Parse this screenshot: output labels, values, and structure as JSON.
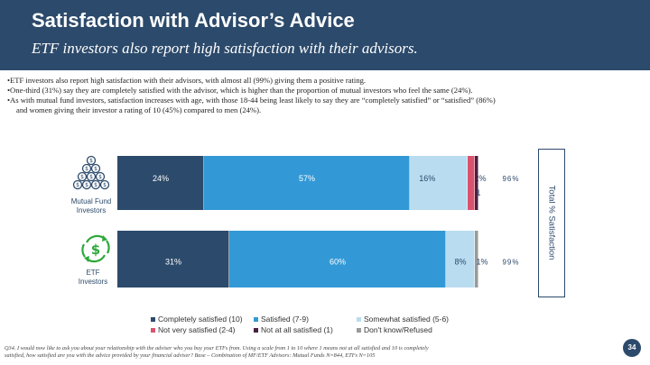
{
  "header": {
    "title": "Satisfaction with Advisor’s Advice",
    "subtitle": "ETF investors also report high satisfaction with their advisors."
  },
  "bullets": [
    "•ETF investors also report high satisfaction with their advisors, with almost all (99%) giving them a positive rating.",
    "•One-third (31%) say they are completely satisfied with the advisor, which is higher than the proportion of mutual investors who feel the same (24%).",
    "•As with mutual fund investors, satisfaction increases with age, with those 18-44 being least likely to say they are “completely satisfied” or “satisfied” (86%)",
    "  and women giving their investor a rating of 10 (45%) compared to men (24%)."
  ],
  "row_labels": {
    "mutual": [
      "Mutual Fund",
      "Investors"
    ],
    "etf": [
      "ETF",
      "Investors"
    ]
  },
  "total_axis_label": "Total % Satisfaction",
  "footnote": {
    "line1": "Q34. I would now like to ask you about your relationship with the adviser who you buy your ETFs from. Using a scale from 1 to 10 where 1 means not at all satisfied and 10 is completely",
    "line2": "satisfied, how satisfied are you with the advice provided by your financial adviser? Base – Combination of MF/ETF Advisors: Mutual Funds N=844, ETFs N=105"
  },
  "page_number": "34",
  "colors": {
    "header": "#2c4a6b",
    "completely": "#2c4a6b",
    "satisfied": "#3399d6",
    "somewhat": "#b9dcf0",
    "not_very": "#d9536f",
    "not_at_all": "#4a2040",
    "dont_know": "#9a9a9a"
  },
  "chart_data": {
    "type": "bar",
    "orientation": "horizontal-stacked",
    "categories": [
      "Mutual Fund Investors",
      "ETF Investors"
    ],
    "series": [
      {
        "name": "Completely satisfied (10)",
        "values": [
          24,
          31
        ],
        "labels": [
          "24%",
          "31%"
        ]
      },
      {
        "name": "Satisfied (7-9)",
        "values": [
          57,
          60
        ],
        "labels": [
          "57%",
          "60%"
        ]
      },
      {
        "name": "Somewhat satisfied (5-6)",
        "values": [
          16,
          8
        ],
        "labels": [
          "16%",
          "8%"
        ]
      },
      {
        "name": "Not very satisfied (2-4)",
        "values": [
          2,
          0
        ],
        "labels": [
          "2%",
          ""
        ]
      },
      {
        "name": "Not at all satisfied (1)",
        "values": [
          1,
          0
        ],
        "labels": [
          "1",
          ""
        ]
      },
      {
        "name": "Don't know/Refused",
        "values": [
          0,
          1
        ],
        "labels": [
          "",
          "1%"
        ]
      }
    ],
    "totals": [
      "96%",
      "99%"
    ],
    "ylabel": "Total % Satisfaction",
    "legend": [
      "Completely satisfied (10)",
      "Satisfied (7-9)",
      "Somewhat satisfied (5-6)",
      "Not very satisfied (2-4)",
      "Not at all satisfied (1)",
      "Don't know/Refused"
    ]
  }
}
